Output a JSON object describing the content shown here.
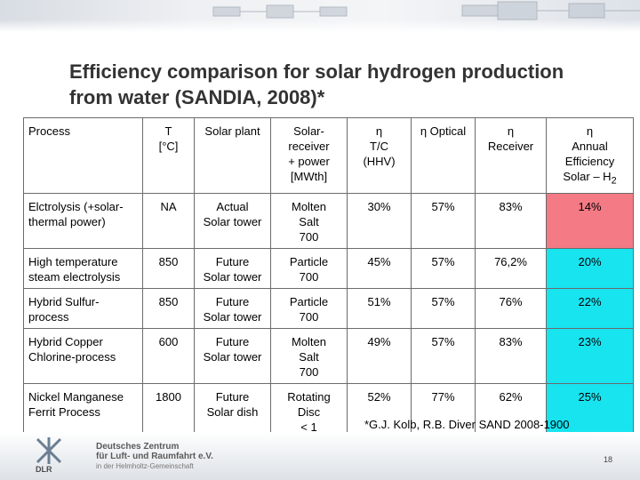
{
  "slide": {
    "title_line1": "Efficiency comparison for solar hydrogen production",
    "title_line2": "from water (SANDIA, 2008)*",
    "footnote": "*G.J. Kolb, R.B. Diver SAND 2008-1900",
    "page_number": "18"
  },
  "org": {
    "logo_text": "DLR",
    "line1": "Deutsches Zentrum",
    "line2": "für Luft- und Raumfahrt e.V.",
    "line3": "in der Helmholtz-Gemeinschaft"
  },
  "colors": {
    "highlight_red": "#f47a85",
    "highlight_cyan": "#18e4f0"
  },
  "table": {
    "headers": {
      "process": "Process",
      "t": [
        "T",
        "[°C]"
      ],
      "plant": "Solar plant",
      "receiver": [
        "Solar-",
        "receiver",
        "+ power",
        "[MWth]"
      ],
      "eta_tc": [
        "η",
        "T/C",
        "(HHV)"
      ],
      "eta_optical": "η Optical",
      "eta_receiver": [
        "η",
        "Receiver"
      ],
      "eta_annual": [
        "η",
        "Annual",
        "Efficiency",
        "Solar – H",
        "2"
      ]
    },
    "rows": [
      {
        "process": "Elctrolysis (+solar-thermal power)",
        "t": "NA",
        "plant": [
          "Actual",
          "Solar tower"
        ],
        "receiver": [
          "Molten",
          "Salt",
          "700"
        ],
        "eta_tc": "30%",
        "eta_opt": "57%",
        "eta_rec": "83%",
        "eta_annual": "14%"
      },
      {
        "process": "High temperature steam electrolysis",
        "t": "850",
        "plant": [
          "Future",
          "Solar tower"
        ],
        "receiver": [
          "Particle",
          "700"
        ],
        "eta_tc": "45%",
        "eta_opt": "57%",
        "eta_rec": "76,2%",
        "eta_annual": "20%"
      },
      {
        "process": "Hybrid Sulfur-process",
        "t": "850",
        "plant": [
          "Future",
          "Solar tower"
        ],
        "receiver": [
          "Particle",
          "700"
        ],
        "eta_tc": "51%",
        "eta_opt": "57%",
        "eta_rec": "76%",
        "eta_annual": "22%"
      },
      {
        "process": "Hybrid Copper Chlorine-process",
        "t": "600",
        "plant": [
          "Future",
          "Solar tower"
        ],
        "receiver": [
          "Molten",
          "Salt",
          "700"
        ],
        "eta_tc": "49%",
        "eta_opt": "57%",
        "eta_rec": "83%",
        "eta_annual": "23%"
      },
      {
        "process": "Nickel Manganese Ferrit Process",
        "t": "1800",
        "plant": [
          "Future",
          "Solar dish"
        ],
        "receiver": [
          "Rotating",
          "Disc",
          "< 1"
        ],
        "eta_tc": "52%",
        "eta_opt": "77%",
        "eta_rec": "62%",
        "eta_annual": "25%"
      }
    ]
  }
}
